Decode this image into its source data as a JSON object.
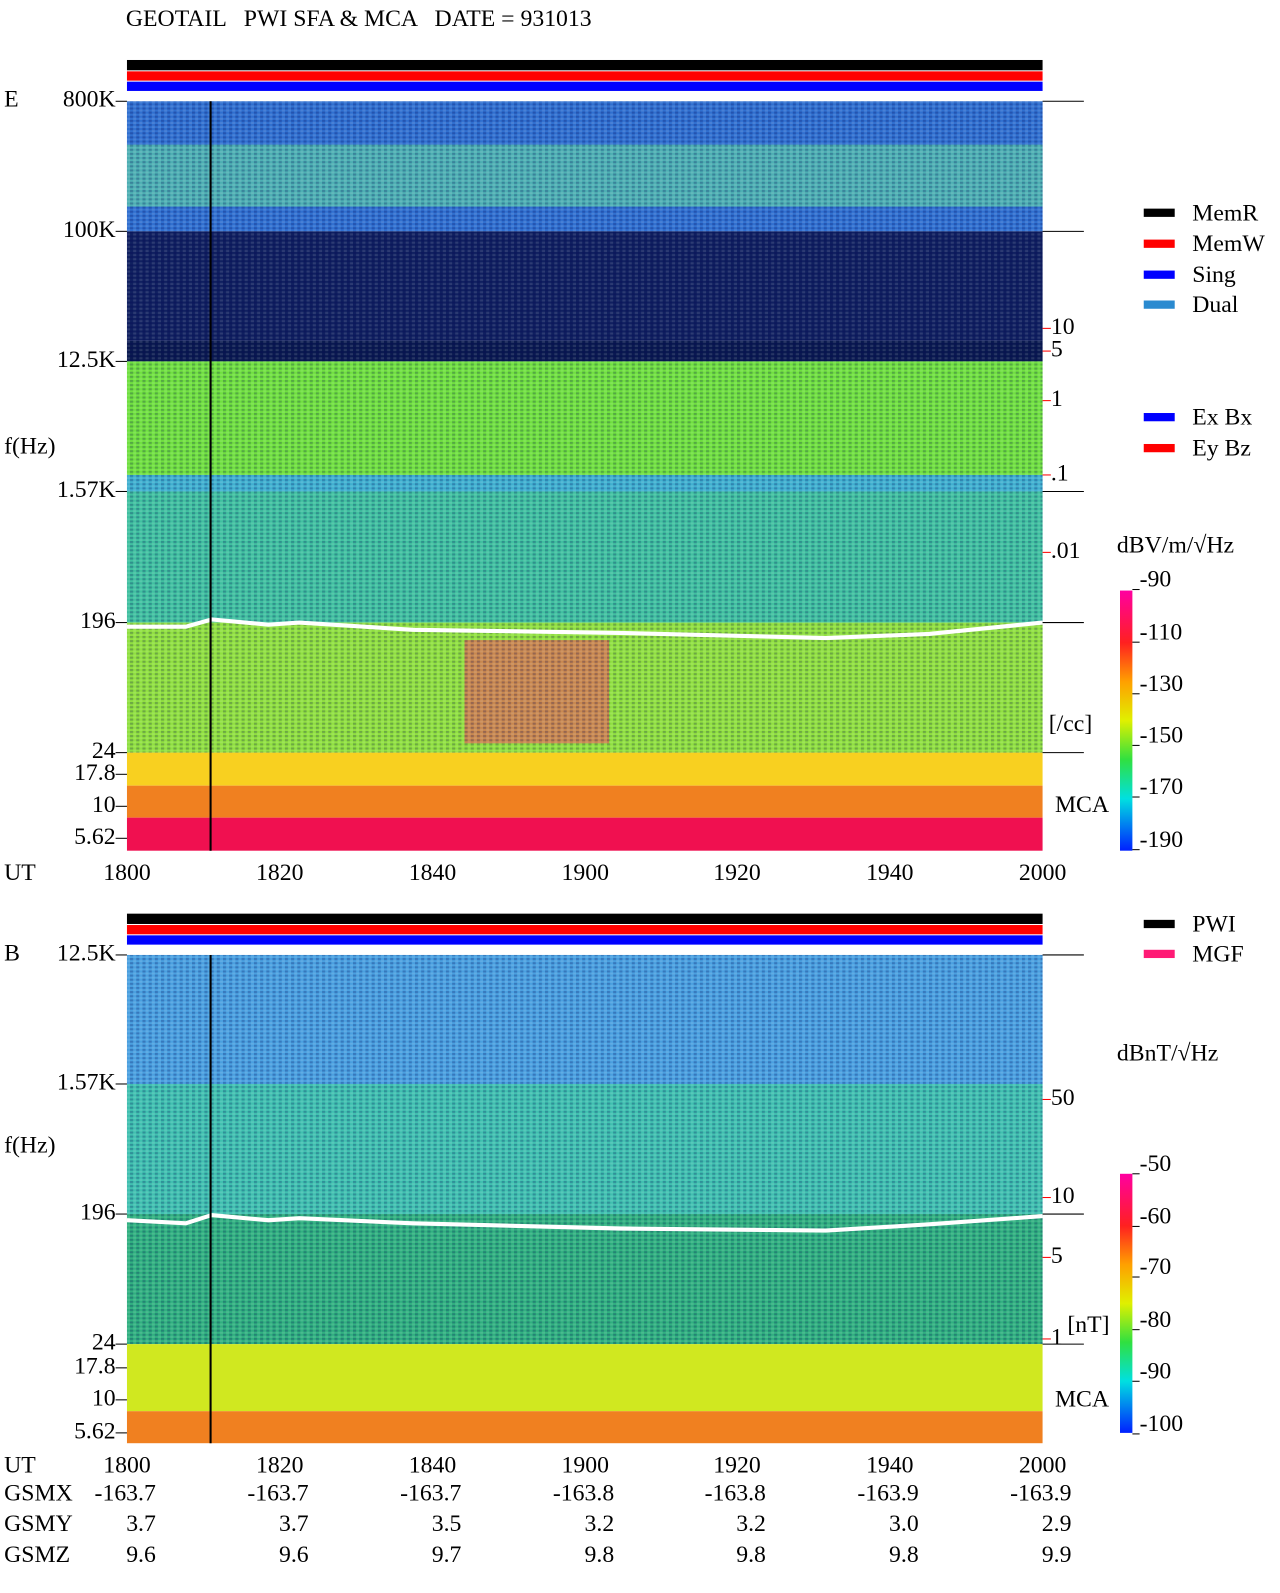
{
  "title": "GEOTAIL   PWI SFA & MCA   DATE = 931013",
  "panel_e": {
    "label": "E",
    "y_axis_label": "f(Hz)",
    "freq_ticks": [
      "800K",
      "100K",
      "12.5K",
      "1.57K",
      "196",
      "24",
      "17.8",
      "10",
      "5.62"
    ],
    "time_label": "UT",
    "time_ticks": [
      "1800",
      "1820",
      "1840",
      "1900",
      "1920",
      "1940",
      "2000"
    ],
    "density_ticks": [
      "10",
      "5",
      "1",
      ".1",
      ".01"
    ],
    "density_unit": "[/cc]",
    "mca_label": "MCA",
    "legend": [
      {
        "label": "MemR",
        "color": "#000000"
      },
      {
        "label": "MemW",
        "color": "#ff0000"
      },
      {
        "label": "Sing",
        "color": "#0000ff"
      },
      {
        "label": "Dual",
        "color": "#2a8ad0"
      }
    ],
    "component_legend": [
      {
        "label": "Ex Bx",
        "color": "#0000ff"
      },
      {
        "label": "Ey Bz",
        "color": "#ff0000"
      }
    ],
    "colorbar_unit": "dBV/m/√Hz",
    "colorbar_ticks": [
      "-90",
      "-110",
      "-130",
      "-150",
      "-170",
      "-190"
    ]
  },
  "panel_b": {
    "label": "B",
    "y_axis_label": "f(Hz)",
    "freq_ticks": [
      "12.5K",
      "1.57K",
      "196",
      "24",
      "17.8",
      "10",
      "5.62"
    ],
    "time_label": "UT",
    "time_ticks": [
      "1800",
      "1820",
      "1840",
      "1900",
      "1920",
      "1940",
      "2000"
    ],
    "field_ticks": [
      "50",
      "10",
      "5",
      "1"
    ],
    "field_unit": "[nT]",
    "mca_label": "MCA",
    "legend": [
      {
        "label": "PWI",
        "color": "#000000"
      },
      {
        "label": "MGF",
        "color": "#ff1a75"
      }
    ],
    "colorbar_unit": "dBnT/√Hz",
    "colorbar_ticks": [
      "-50",
      "-60",
      "-70",
      "-80",
      "-90",
      "-100"
    ]
  },
  "orbit": {
    "rows": [
      {
        "label": "GSMX",
        "values": [
          "-163.7",
          "-163.7",
          "-163.7",
          "-163.8",
          "-163.8",
          "-163.9",
          "-163.9"
        ]
      },
      {
        "label": "GSMY",
        "values": [
          "3.7",
          "3.7",
          "3.5",
          "3.2",
          "3.2",
          "3.0",
          "2.9"
        ]
      },
      {
        "label": "GSMZ",
        "values": [
          "9.6",
          "9.6",
          "9.7",
          "9.8",
          "9.8",
          "9.8",
          "9.9"
        ]
      }
    ]
  }
}
